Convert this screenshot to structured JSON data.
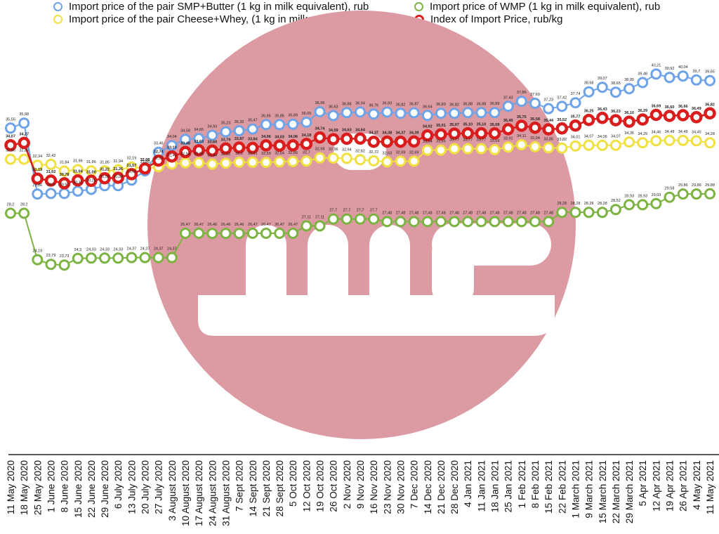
{
  "chart_data": {
    "type": "line",
    "title": "",
    "xlabel": "",
    "ylabel": "",
    "ylim": [
      20,
      43
    ],
    "grid": false,
    "legend_position": "top",
    "categories": [
      "11 May 2020",
      "18 May 2020",
      "25 May 2020",
      "1 June 2020",
      "8 June 2020",
      "15 June 2020",
      "22 June 2020",
      "29 June 2020",
      "6 July 2020",
      "13 July 2020",
      "20 July 2020",
      "27 July 2020",
      "3 August 2020",
      "10 August 2020",
      "17 August 2020",
      "24 August 2020",
      "31 August 2020",
      "7 Sept 2020",
      "14 Sept 2020",
      "21 Sept 2020",
      "28 Sept 2020",
      "5 Oct 2020",
      "12 Oct 2020",
      "19 Oct 2020",
      "26 Oct 2020",
      "2 Nov 2020",
      "9 Nov 2020",
      "16 Nov 2020",
      "23 Nov 2020",
      "30 Nov 2020",
      "7 Dec 2020",
      "14 Dec 2020",
      "21 Dec 2020",
      "28 Dec 2020",
      "4 Jan 2021",
      "11 Jan 2021",
      "18 Jan 2021",
      "25 Jan 2021",
      "1 Feb 2021",
      "8 Feb 2021",
      "15 Feb 2021",
      "22 Feb 2021",
      "1 March 2021",
      "9 March 2021",
      "15 March 2021",
      "22 March 2021",
      "29 March 2021",
      "5 Apr 2021",
      "12 Apr 2021",
      "19 Apr 2021",
      "26 Apr 2021",
      "4 May 2021",
      "11 May 2021"
    ],
    "series": [
      {
        "name": "Import price of the pair SMP+Butter (1 kg in milk equivalent), rub",
        "color": "#6fa3e8",
        "thick": false,
        "bold": false,
        "labels": [
          "35,55",
          "35,98",
          "29,86",
          "29,9",
          "29,91",
          "30,11",
          "30,26",
          "30,58",
          "30,58",
          "31,06",
          "31,86",
          "33,46",
          "34,04",
          "34,58",
          "34,65",
          "34,93",
          "35,23",
          "35,32",
          "35,47",
          "35,85",
          "35,85",
          "35,89",
          "36,05",
          "36,96",
          "36,63",
          "36,88",
          "36,94",
          "36,76",
          "36,93",
          "36,82",
          "36,87",
          "36,64",
          "36,83",
          "36,82",
          "36,88",
          "36,88",
          "36,89",
          "37,43",
          "37,86",
          "37,69",
          "37,23",
          "37,42",
          "37,74",
          "38,68",
          "39,07",
          "38,65",
          "38,95",
          "39,48",
          "40,21",
          "39,92",
          "40,04",
          "39,7",
          "39,65"
        ]
      },
      {
        "name": "Import price of the pair Cheese+Whey,  (1 kg in milk equivalent), rub",
        "color": "#f0e040",
        "thick": false,
        "bold": false,
        "labels": [
          "32,86",
          "32,86",
          "32,34",
          "32,42",
          "31,84",
          "31,96",
          "31,86",
          "31,85",
          "31,94",
          "32,19",
          "32,06",
          "32,21",
          "32,45",
          "32,54",
          "32,56",
          "32,44",
          "32,52",
          "32,6",
          "32,61",
          "32,59",
          "32,64",
          "32,66",
          "32,7",
          "32,98",
          "32,96",
          "32,94",
          "32,82",
          "32,72",
          "32,63",
          "32,69",
          "32,69",
          "33,64",
          "33,65",
          "33,77",
          "33,77",
          "33,77",
          "33,69",
          "33,91",
          "34,11",
          "33,94",
          "33,85",
          "33,82",
          "34,01",
          "34,07",
          "34,06",
          "34,07",
          "34,35",
          "34,29",
          "34,46",
          "34,49",
          "34,49",
          "34,45",
          "34,28"
        ]
      },
      {
        "name": "Import price of WMP (1 kg in milk equivalent), rub",
        "color": "#7cb342",
        "thick": false,
        "bold": false,
        "labels": [
          "28,2",
          "28,2",
          "24,19",
          "23,79",
          "23,73",
          "24,3",
          "24,33",
          "24,33",
          "24,33",
          "24,37",
          "24,37",
          "24,37",
          "24,37",
          "26,47",
          "26,47",
          "26,46",
          "26,46",
          "26,46",
          "26,47",
          "26,47",
          "26,47",
          "26,47",
          "27,11",
          "27,11",
          "27,7",
          "27,7",
          "27,7",
          "27,7",
          "27,48",
          "27,48",
          "27,48",
          "27,48",
          "27,48",
          "27,48",
          "27,48",
          "27,48",
          "27,48",
          "27,48",
          "27,48",
          "27,48",
          "27,48",
          "28,28",
          "28,28",
          "28,28",
          "28,28",
          "28,52",
          "28,93",
          "28,93",
          "29,03",
          "29,58",
          "29,86",
          "29,86",
          "29,88"
        ]
      },
      {
        "name": "Index of Import Price, rub/kg",
        "color": "#d91c1c",
        "thick": true,
        "bold": true,
        "labels": [
          "34,07",
          "34,27",
          "31,19",
          "31,02",
          "30,78",
          "31,04",
          "31,00",
          "31,22",
          "31,26",
          "31,57",
          "32,06",
          "32,74",
          "33,10",
          "33,48",
          "33,63",
          "33,60",
          "33,79",
          "33,87",
          "33,84",
          "34,06",
          "34,03",
          "34,06",
          "34,18",
          "34,74",
          "34,59",
          "34,63",
          "34,64",
          "34,37",
          "34,38",
          "34,37",
          "34,39",
          "34,92",
          "35,01",
          "35,07",
          "35,10",
          "35,10",
          "35,09",
          "35,45",
          "35,75",
          "35,58",
          "35,44",
          "35,52",
          "35,77",
          "36,25",
          "36,43",
          "36,23",
          "36,10",
          "36,29",
          "36,69",
          "36,60",
          "36,66",
          "36,49",
          "36,82"
        ]
      }
    ]
  }
}
